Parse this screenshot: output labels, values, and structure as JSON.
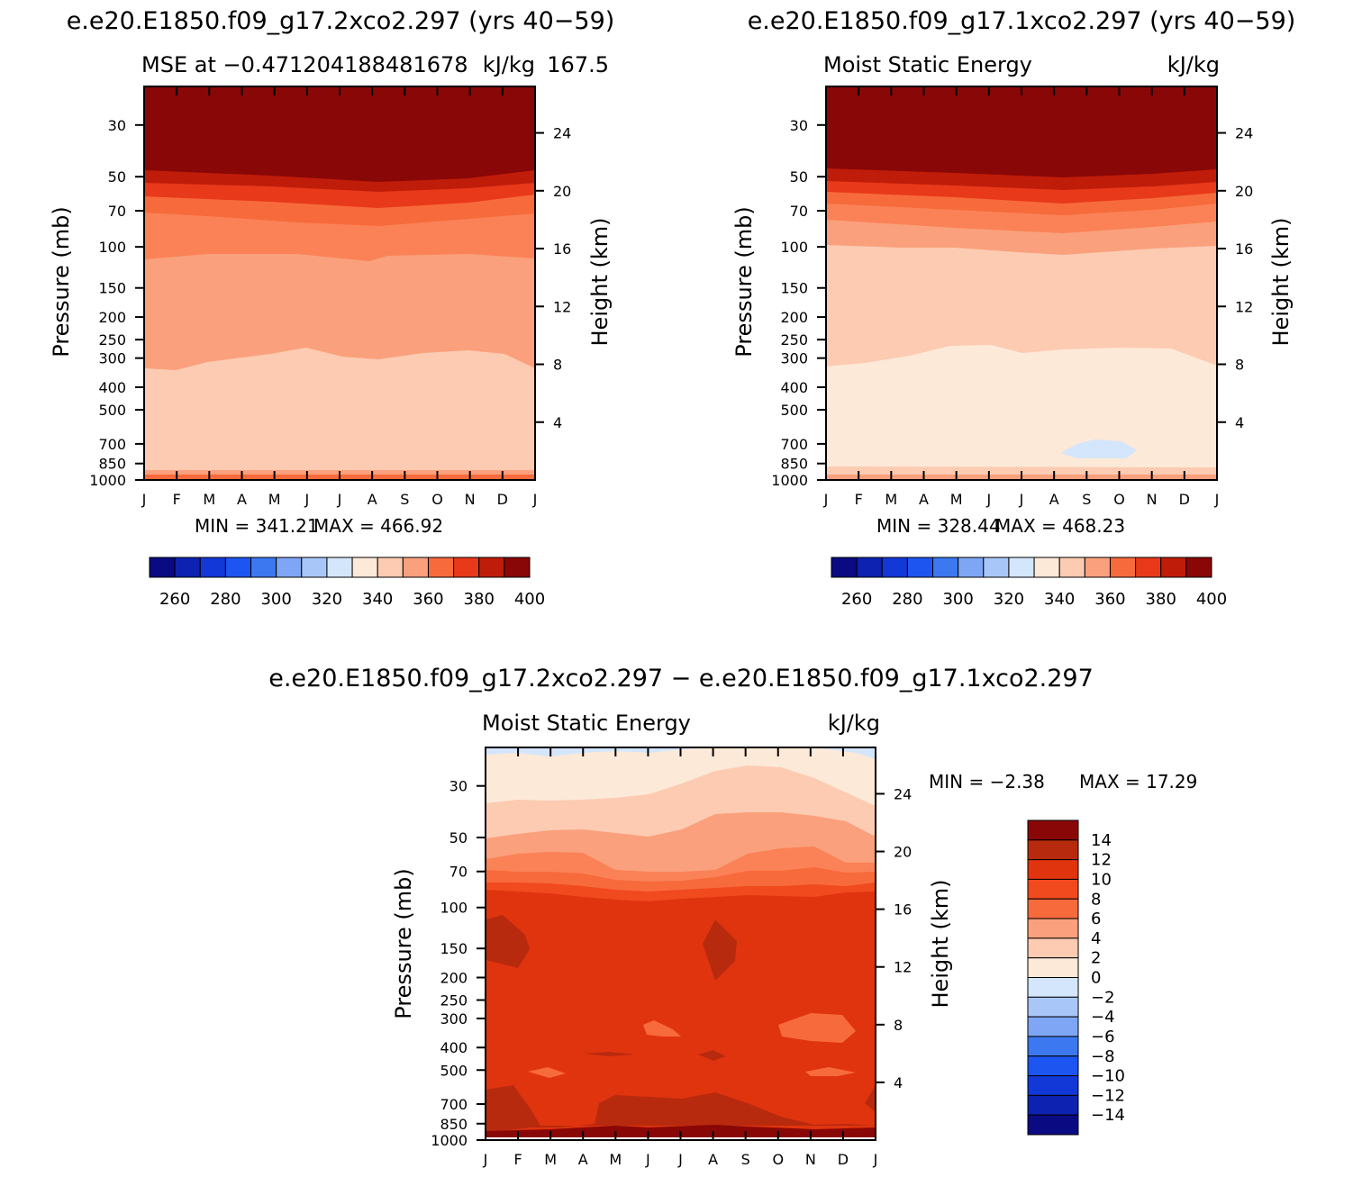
{
  "chart_data": [
    {
      "type": "heatmap",
      "case_title": "e.e20.E1850.f09_g17.2xco2.297 (yrs 40−59)",
      "title": "MSE at −0.471204188481678",
      "title_extra": "167.5",
      "units": "kJ/kg",
      "ylabel": "Pressure (mb)",
      "ylabel_right": "Height (km)",
      "x_ticks": [
        "J",
        "F",
        "M",
        "A",
        "M",
        "J",
        "J",
        "A",
        "S",
        "O",
        "N",
        "D",
        "J"
      ],
      "y_ticks": [
        "30",
        "50",
        "70",
        "100",
        "150",
        "200",
        "250",
        "300",
        "400",
        "500",
        "700",
        "850",
        "1000"
      ],
      "y_ticks_right": [
        "24",
        "20",
        "16",
        "12",
        "8",
        "4"
      ],
      "min_label": "MIN = 341.21",
      "max_label": "MAX = 466.92",
      "min": 341.21,
      "max": 466.92,
      "colorbar": {
        "orientation": "horizontal",
        "levels": [
          250,
          260,
          270,
          280,
          290,
          300,
          310,
          320,
          330,
          340,
          350,
          360,
          370,
          380,
          390,
          400
        ],
        "tick_labels": [
          "260",
          "280",
          "300",
          "320",
          "340",
          "360",
          "380",
          "400"
        ]
      }
    },
    {
      "type": "heatmap",
      "case_title": "e.e20.E1850.f09_g17.1xco2.297 (yrs 40−59)",
      "title": "Moist Static Energy",
      "units": "kJ/kg",
      "ylabel": "Pressure (mb)",
      "ylabel_right": "Height (km)",
      "x_ticks": [
        "J",
        "F",
        "M",
        "A",
        "M",
        "J",
        "J",
        "A",
        "S",
        "O",
        "N",
        "D",
        "J"
      ],
      "y_ticks": [
        "30",
        "50",
        "70",
        "100",
        "150",
        "200",
        "250",
        "300",
        "400",
        "500",
        "700",
        "850",
        "1000"
      ],
      "y_ticks_right": [
        "24",
        "20",
        "16",
        "12",
        "8",
        "4"
      ],
      "min_label": "MIN = 328.44",
      "max_label": "MAX = 468.23",
      "min": 328.44,
      "max": 468.23,
      "colorbar": {
        "orientation": "horizontal",
        "levels": [
          250,
          260,
          270,
          280,
          290,
          300,
          310,
          320,
          330,
          340,
          350,
          360,
          370,
          380,
          390,
          400
        ],
        "tick_labels": [
          "260",
          "280",
          "300",
          "320",
          "340",
          "360",
          "380",
          "400"
        ]
      }
    },
    {
      "type": "heatmap",
      "case_title": "e.e20.E1850.f09_g17.2xco2.297 − e.e20.E1850.f09_g17.1xco2.297",
      "title": "Moist Static Energy",
      "units": "kJ/kg",
      "ylabel": "Pressure (mb)",
      "ylabel_right": "Height (km)",
      "x_ticks": [
        "J",
        "F",
        "M",
        "A",
        "M",
        "J",
        "J",
        "A",
        "S",
        "O",
        "N",
        "D",
        "J"
      ],
      "y_ticks": [
        "30",
        "50",
        "70",
        "100",
        "150",
        "200",
        "250",
        "300",
        "400",
        "500",
        "700",
        "850",
        "1000"
      ],
      "y_ticks_right": [
        "24",
        "20",
        "16",
        "12",
        "8",
        "4"
      ],
      "min_label": "MIN = −2.38",
      "max_label": "MAX = 17.29",
      "min": -2.38,
      "max": 17.29,
      "colorbar": {
        "orientation": "vertical",
        "levels": [
          -14,
          -12,
          -10,
          -8,
          -6,
          -4,
          -2,
          0,
          2,
          4,
          6,
          8,
          10,
          12,
          14
        ],
        "tick_labels": [
          "14",
          "12",
          "10",
          "8",
          "6",
          "4",
          "2",
          "0",
          "−2",
          "−4",
          "−6",
          "−8",
          "−10",
          "−12",
          "−14"
        ]
      }
    }
  ],
  "colors": {
    "palette": [
      "#0a0a82",
      "#0d22b0",
      "#1238d8",
      "#1d55f0",
      "#3c78f0",
      "#7fa6f5",
      "#a9c6f8",
      "#d4e6fb",
      "#fde9d8",
      "#fccbb2",
      "#faa07c",
      "#f76a3c",
      "#e8391a",
      "#c01c0a",
      "#8a0707"
    ],
    "negative": [
      "#0a0a82",
      "#0d22b0",
      "#1238d8",
      "#1d55f0",
      "#3c78f0",
      "#7fa6f5",
      "#a9c6f8",
      "#d4e6fb"
    ],
    "positive": [
      "#fde9d8",
      "#fccbb2",
      "#faa07c",
      "#f76a3c",
      "#e8391a",
      "#c01c0a",
      "#8a0707"
    ]
  }
}
